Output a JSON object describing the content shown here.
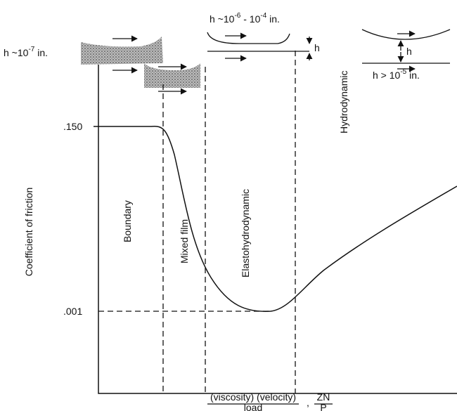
{
  "film_labels": [
    {
      "base": "h ~10",
      "exp": "-7",
      "unit": " in."
    },
    {
      "base": "h ~10",
      "exp": "-6",
      "mid": " - 10",
      "exp2": "-4",
      "unit": " in."
    },
    {
      "base": "h > 10",
      "exp": "-5",
      "unit": " in."
    }
  ],
  "gap_labels": [
    "h",
    "h"
  ],
  "y_axis": {
    "title": "Coefficient of friction",
    "ticks": [
      ".150",
      ".001"
    ]
  },
  "regimes": [
    "Boundary",
    "Mixed film",
    "Elastohydrodynamic",
    "Hydrodynamic"
  ],
  "x_axis": {
    "numerator": "(viscosity) (velocity)",
    "denominator": "load",
    "separator": ",",
    "symbol_numerator": "ZN",
    "symbol_denominator": "P"
  }
}
